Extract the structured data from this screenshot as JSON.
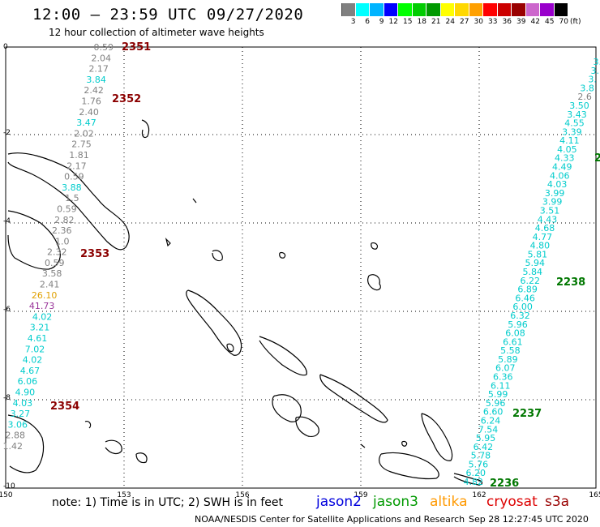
{
  "header": {
    "title": "12:00 – 23:59 UTC 09/27/2020",
    "subtitle": "12 hour collection of altimeter wave heights"
  },
  "scale": {
    "unit": "(ft)",
    "colors": [
      "#808080",
      "#00ffff",
      "#00b4ff",
      "#0000ff",
      "#00ff00",
      "#00cc00",
      "#009900",
      "#ffff00",
      "#ffd800",
      "#ffa000",
      "#ff0000",
      "#cc0000",
      "#990000",
      "#cc66cc",
      "#9900cc",
      "#000000"
    ],
    "labels": [
      "3",
      "6",
      "9",
      "12",
      "15",
      "18",
      "21",
      "24",
      "27",
      "30",
      "33",
      "36",
      "39",
      "42",
      "45",
      "70"
    ]
  },
  "axes": {
    "lon_labels": [
      "150",
      "153",
      "156",
      "159",
      "162",
      "165"
    ],
    "lat_labels": [
      "0",
      "-2",
      "-4",
      "-6",
      "-8",
      "-10"
    ]
  },
  "tracks": [
    {
      "name": "west",
      "values": [
        {
          "v": "0.59",
          "c": "#808080"
        },
        {
          "v": "2.04",
          "c": "#808080"
        },
        {
          "v": "2.17",
          "c": "#808080"
        },
        {
          "v": "3.84",
          "c": "#00cccc"
        },
        {
          "v": "2.42",
          "c": "#808080"
        },
        {
          "v": "1.76",
          "c": "#808080"
        },
        {
          "v": "2.40",
          "c": "#808080"
        },
        {
          "v": "3.47",
          "c": "#00cccc"
        },
        {
          "v": "2.02",
          "c": "#808080"
        },
        {
          "v": "2.75",
          "c": "#808080"
        },
        {
          "v": "1.81",
          "c": "#808080"
        },
        {
          "v": "2.17",
          "c": "#808080"
        },
        {
          "v": "0.59",
          "c": "#808080"
        },
        {
          "v": "3.88",
          "c": "#00cccc"
        },
        {
          "v": "1.5",
          "c": "#808080"
        },
        {
          "v": "0.59",
          "c": "#808080"
        },
        {
          "v": "2.82",
          "c": "#808080"
        },
        {
          "v": "2.36",
          "c": "#808080"
        },
        {
          "v": "1.0",
          "c": "#808080"
        },
        {
          "v": "2.32",
          "c": "#808080"
        },
        {
          "v": "0.59",
          "c": "#808080"
        },
        {
          "v": "3.58",
          "c": "#808080"
        },
        {
          "v": "2.41",
          "c": "#808080"
        },
        {
          "v": "26.10",
          "c": "#e0a000"
        },
        {
          "v": "41.73",
          "c": "#993399"
        },
        {
          "v": "4.02",
          "c": "#00cccc"
        },
        {
          "v": "3.21",
          "c": "#00cccc"
        },
        {
          "v": "4.61",
          "c": "#00cccc"
        },
        {
          "v": "7.02",
          "c": "#00cccc"
        },
        {
          "v": "4.02",
          "c": "#00cccc"
        },
        {
          "v": "4.67",
          "c": "#00cccc"
        },
        {
          "v": "6.06",
          "c": "#00cccc"
        },
        {
          "v": "4.90",
          "c": "#00cccc"
        },
        {
          "v": "4.03",
          "c": "#00cccc"
        },
        {
          "v": "3.27",
          "c": "#00cccc"
        },
        {
          "v": "3.06",
          "c": "#00cccc"
        },
        {
          "v": "2.88",
          "c": "#808080"
        },
        {
          "v": "1.42",
          "c": "#808080"
        }
      ]
    },
    {
      "name": "east",
      "values": [
        {
          "v": "3.",
          "c": "#00cccc"
        },
        {
          "v": "3.",
          "c": "#00cccc"
        },
        {
          "v": "3.",
          "c": "#00cccc"
        },
        {
          "v": "3.8",
          "c": "#00cccc"
        },
        {
          "v": "2.6",
          "c": "#808080"
        },
        {
          "v": "3.50",
          "c": "#00cccc"
        },
        {
          "v": "3.43",
          "c": "#00cccc"
        },
        {
          "v": "4.55",
          "c": "#00cccc"
        },
        {
          "v": "3.39",
          "c": "#00cccc"
        },
        {
          "v": "4.11",
          "c": "#00cccc"
        },
        {
          "v": "4.05",
          "c": "#00cccc"
        },
        {
          "v": "4.33",
          "c": "#00cccc"
        },
        {
          "v": "4.49",
          "c": "#00cccc"
        },
        {
          "v": "4.06",
          "c": "#00cccc"
        },
        {
          "v": "4.03",
          "c": "#00cccc"
        },
        {
          "v": "3.99",
          "c": "#00cccc"
        },
        {
          "v": "3.99",
          "c": "#00cccc"
        },
        {
          "v": "3.51",
          "c": "#00cccc"
        },
        {
          "v": "4.43",
          "c": "#00cccc"
        },
        {
          "v": "4.68",
          "c": "#00cccc"
        },
        {
          "v": "4.77",
          "c": "#00cccc"
        },
        {
          "v": "4.80",
          "c": "#00cccc"
        },
        {
          "v": "5.81",
          "c": "#00cccc"
        },
        {
          "v": "5.94",
          "c": "#00cccc"
        },
        {
          "v": "5.84",
          "c": "#00cccc"
        },
        {
          "v": "6.22",
          "c": "#00cccc"
        },
        {
          "v": "6.89",
          "c": "#00cccc"
        },
        {
          "v": "6.46",
          "c": "#00cccc"
        },
        {
          "v": "6.00",
          "c": "#00cccc"
        },
        {
          "v": "6.32",
          "c": "#00cccc"
        },
        {
          "v": "5.96",
          "c": "#00cccc"
        },
        {
          "v": "6.08",
          "c": "#00cccc"
        },
        {
          "v": "6.61",
          "c": "#00cccc"
        },
        {
          "v": "5.58",
          "c": "#00cccc"
        },
        {
          "v": "5.89",
          "c": "#00cccc"
        },
        {
          "v": "6.07",
          "c": "#00cccc"
        },
        {
          "v": "6.36",
          "c": "#00cccc"
        },
        {
          "v": "6.11",
          "c": "#00cccc"
        },
        {
          "v": "5.99",
          "c": "#00cccc"
        },
        {
          "v": "5.96",
          "c": "#00cccc"
        },
        {
          "v": "6.60",
          "c": "#00cccc"
        },
        {
          "v": "6.24",
          "c": "#00cccc"
        },
        {
          "v": "7.54",
          "c": "#00cccc"
        },
        {
          "v": "5.95",
          "c": "#00cccc"
        },
        {
          "v": "6.42",
          "c": "#00cccc"
        },
        {
          "v": "5.78",
          "c": "#00cccc"
        },
        {
          "v": "5.76",
          "c": "#00cccc"
        },
        {
          "v": "6.20",
          "c": "#00cccc"
        },
        {
          "v": "4.82",
          "c": "#00cccc"
        }
      ]
    }
  ],
  "time_labels": [
    {
      "text": "2351",
      "color": "#8b0000"
    },
    {
      "text": "2352",
      "color": "#8b0000"
    },
    {
      "text": "2353",
      "color": "#8b0000"
    },
    {
      "text": "2354",
      "color": "#8b0000"
    },
    {
      "text": "2238",
      "color": "#007700"
    },
    {
      "text": "2237",
      "color": "#007700"
    },
    {
      "text": "2236",
      "color": "#007700"
    },
    {
      "text": "2",
      "color": "#007700"
    }
  ],
  "footer": {
    "note": "note:  1) Time is in UTC;  2) SWH is in feet",
    "satellites": [
      {
        "name": "jason2",
        "color": "#0000dd"
      },
      {
        "name": "jason3",
        "color": "#009900"
      },
      {
        "name": "altika",
        "color": "#ff9900"
      },
      {
        "name": "cryosat",
        "color": "#dd0000"
      },
      {
        "name": "s3a",
        "color": "#990000"
      }
    ],
    "credit": "NOAA/NESDIS Center for Satellite Applications and Research",
    "timestamp": "Sep 28 12:27:45 UTC 2020"
  }
}
